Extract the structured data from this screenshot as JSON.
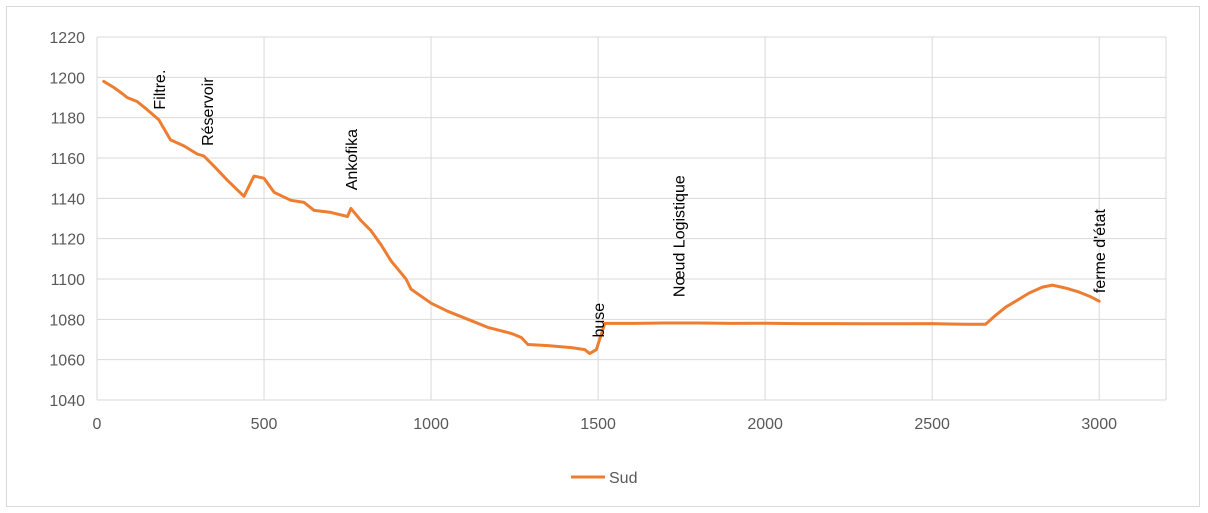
{
  "chart_data": {
    "type": "line",
    "xlabel": "",
    "ylabel": "",
    "xlim": [
      0,
      3200
    ],
    "ylim": [
      1040,
      1220
    ],
    "x_ticks": [
      0,
      500,
      1000,
      1500,
      2000,
      2500,
      3000
    ],
    "y_ticks": [
      1040,
      1060,
      1080,
      1100,
      1120,
      1140,
      1160,
      1180,
      1200,
      1220
    ],
    "grid": true,
    "legend_position": "bottom",
    "series": [
      {
        "name": "Sud",
        "color": "#ED7D31",
        "points": [
          [
            20,
            1198
          ],
          [
            50,
            1195
          ],
          [
            75,
            1192
          ],
          [
            90,
            1190
          ],
          [
            120,
            1188
          ],
          [
            150,
            1184
          ],
          [
            185,
            1179
          ],
          [
            220,
            1169
          ],
          [
            260,
            1166
          ],
          [
            300,
            1162
          ],
          [
            320,
            1161
          ],
          [
            350,
            1156
          ],
          [
            390,
            1149
          ],
          [
            440,
            1141
          ],
          [
            470,
            1151
          ],
          [
            500,
            1150
          ],
          [
            530,
            1143
          ],
          [
            580,
            1139
          ],
          [
            620,
            1138
          ],
          [
            650,
            1134
          ],
          [
            700,
            1133
          ],
          [
            750,
            1131
          ],
          [
            760,
            1135
          ],
          [
            790,
            1129
          ],
          [
            820,
            1124
          ],
          [
            850,
            1117
          ],
          [
            880,
            1109
          ],
          [
            910,
            1103
          ],
          [
            925,
            1100
          ],
          [
            940,
            1095
          ],
          [
            1000,
            1088
          ],
          [
            1050,
            1084
          ],
          [
            1110,
            1080
          ],
          [
            1170,
            1076
          ],
          [
            1240,
            1073
          ],
          [
            1270,
            1071
          ],
          [
            1290,
            1067.5
          ],
          [
            1350,
            1067
          ],
          [
            1420,
            1066
          ],
          [
            1460,
            1065
          ],
          [
            1475,
            1063
          ],
          [
            1495,
            1065
          ],
          [
            1520,
            1078
          ],
          [
            1600,
            1078
          ],
          [
            1700,
            1078.2
          ],
          [
            1800,
            1078.2
          ],
          [
            1900,
            1078
          ],
          [
            2000,
            1078.1
          ],
          [
            2100,
            1077.9
          ],
          [
            2200,
            1077.9
          ],
          [
            2300,
            1077.8
          ],
          [
            2400,
            1077.8
          ],
          [
            2500,
            1077.9
          ],
          [
            2550,
            1077.7
          ],
          [
            2600,
            1077.6
          ],
          [
            2660,
            1077.6
          ],
          [
            2690,
            1082
          ],
          [
            2720,
            1086
          ],
          [
            2750,
            1089
          ],
          [
            2790,
            1093
          ],
          [
            2830,
            1096
          ],
          [
            2860,
            1097
          ],
          [
            2900,
            1095.5
          ],
          [
            2940,
            1093.5
          ],
          [
            2970,
            1091.5
          ],
          [
            3000,
            1089
          ]
        ]
      }
    ],
    "annotations": [
      {
        "text": "Filtre.",
        "x": 185
      },
      {
        "text": "Réservoir",
        "x": 330
      },
      {
        "text": "Ankofika",
        "x": 760
      },
      {
        "text": "buse",
        "x": 1500
      },
      {
        "text": "Nœud Logistique",
        "x": 1740
      },
      {
        "text": "ferme d'état",
        "x": 3000
      }
    ]
  }
}
